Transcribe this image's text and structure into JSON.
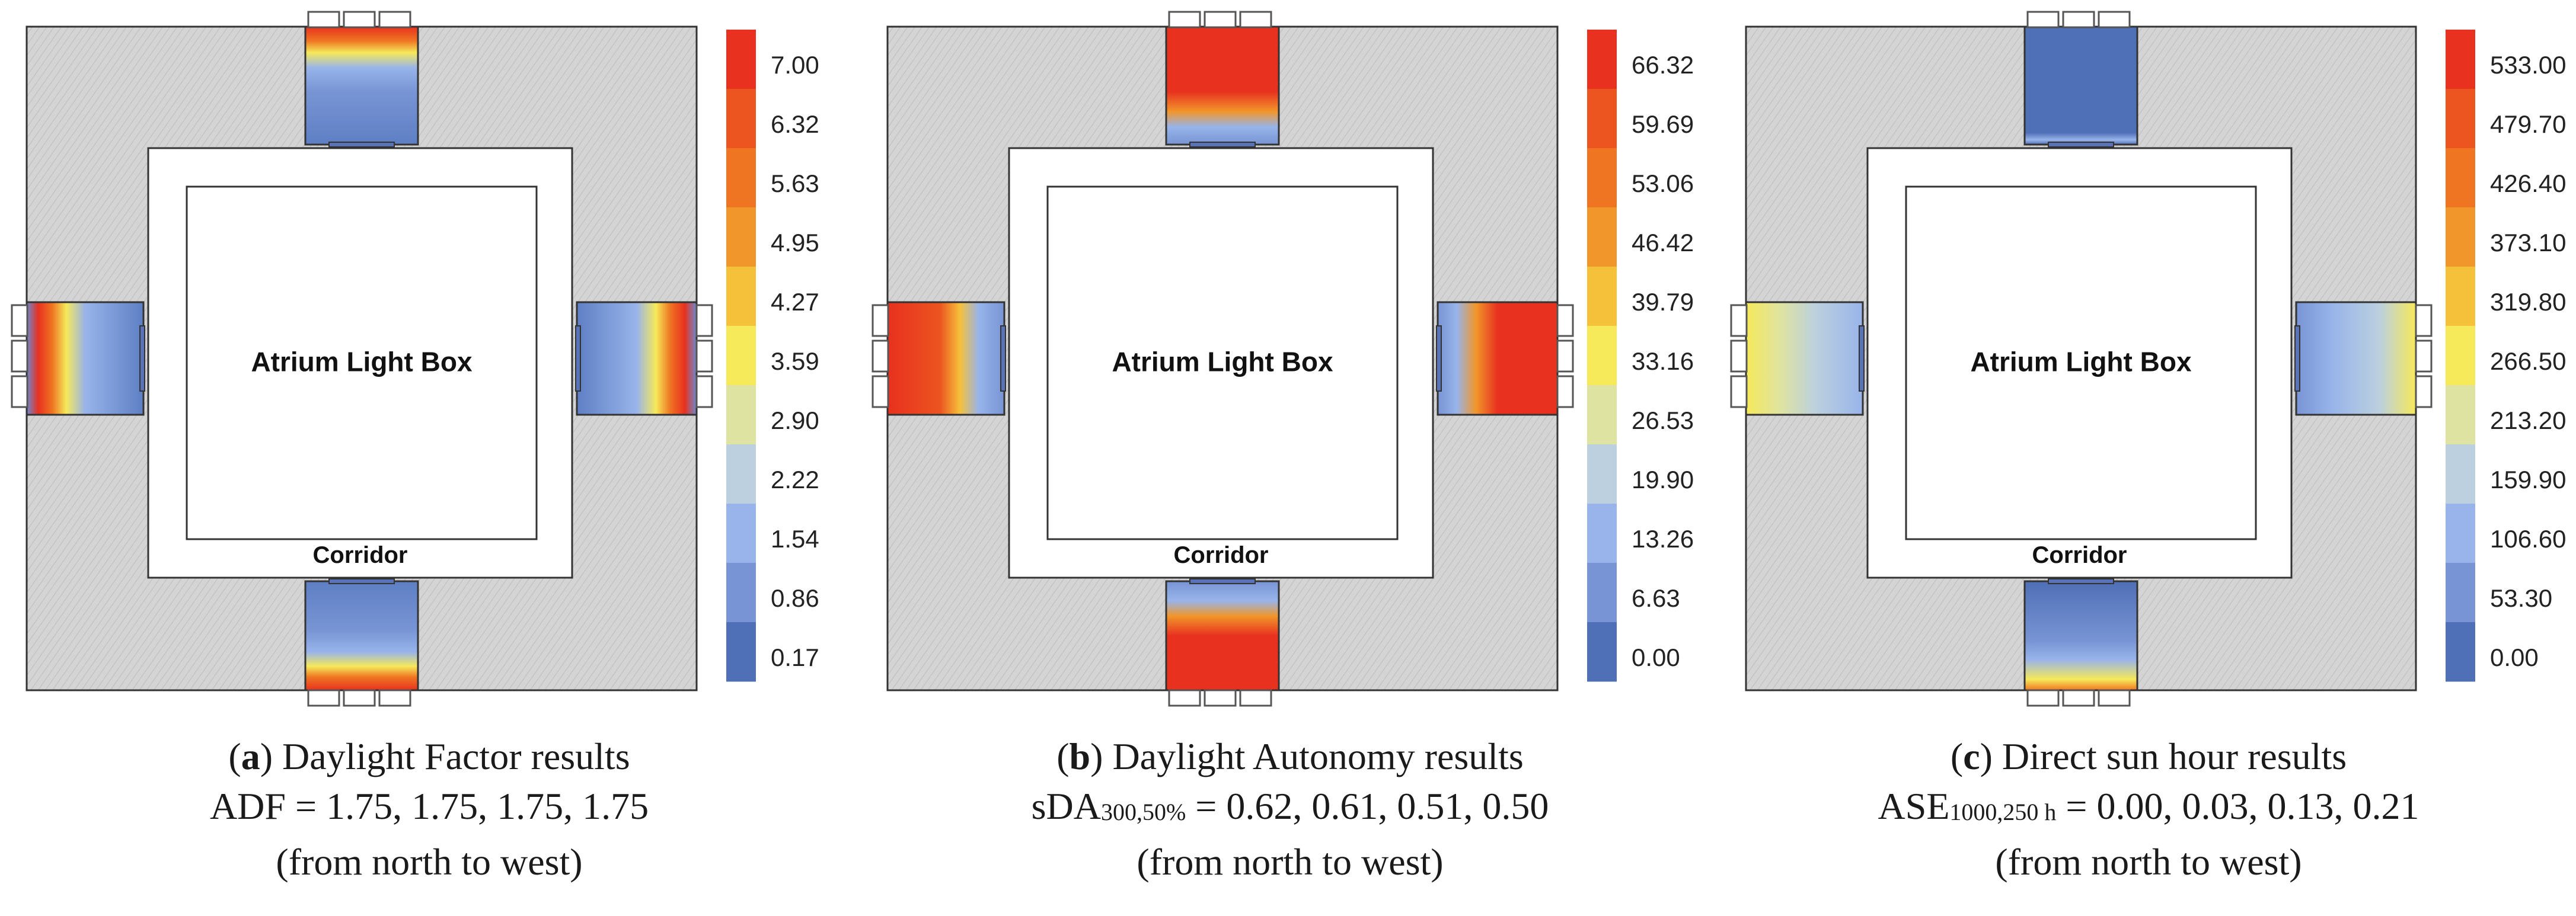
{
  "labels": {
    "atrium": "Atrium Light Box",
    "corridor": "Corridor"
  },
  "panels": [
    {
      "letter": "a",
      "title": "Daylight Factor results",
      "metric_main": "ADF",
      "metric_sub": "",
      "metric_values": "= 1.75, 1.75, 1.75, 1.75",
      "direction": "(from north to west)",
      "scheme": "df",
      "legend": [
        "7.00",
        "6.32",
        "5.63",
        "4.95",
        "4.27",
        "3.59",
        "2.90",
        "2.22",
        "1.54",
        "0.86",
        "0.17"
      ]
    },
    {
      "letter": "b",
      "title": "Daylight Autonomy results",
      "metric_main": "sDA",
      "metric_sub": "300,50%",
      "metric_values": " = 0.62, 0.61, 0.51, 0.50",
      "direction": "(from north to west)",
      "scheme": "da",
      "legend": [
        "66.32",
        "59.69",
        "53.06",
        "46.42",
        "39.79",
        "33.16",
        "26.53",
        "19.90",
        "13.26",
        "6.63",
        "0.00"
      ]
    },
    {
      "letter": "c",
      "title": "Direct sun hour results",
      "metric_main": "ASE",
      "metric_sub": "1000,250 h",
      "metric_values": " = 0.00, 0.03, 0.13, 0.21",
      "direction": "(from north to west)",
      "scheme": "sun",
      "legend": [
        "533.00",
        "479.70",
        "426.40",
        "373.10",
        "319.80",
        "266.50",
        "213.20",
        "159.90",
        "106.60",
        "53.30",
        "0.00"
      ]
    }
  ],
  "colors": {
    "scale": [
      "#e8311f",
      "#ec5420",
      "#ef7522",
      "#f1962a",
      "#f6c13a",
      "#f6e95a",
      "#dfe3a2",
      "#bcd0df",
      "#98b4ea",
      "#7894d4",
      "#4f6fb6"
    ],
    "hatch": "#d4d4d4",
    "outline": "#333333"
  }
}
